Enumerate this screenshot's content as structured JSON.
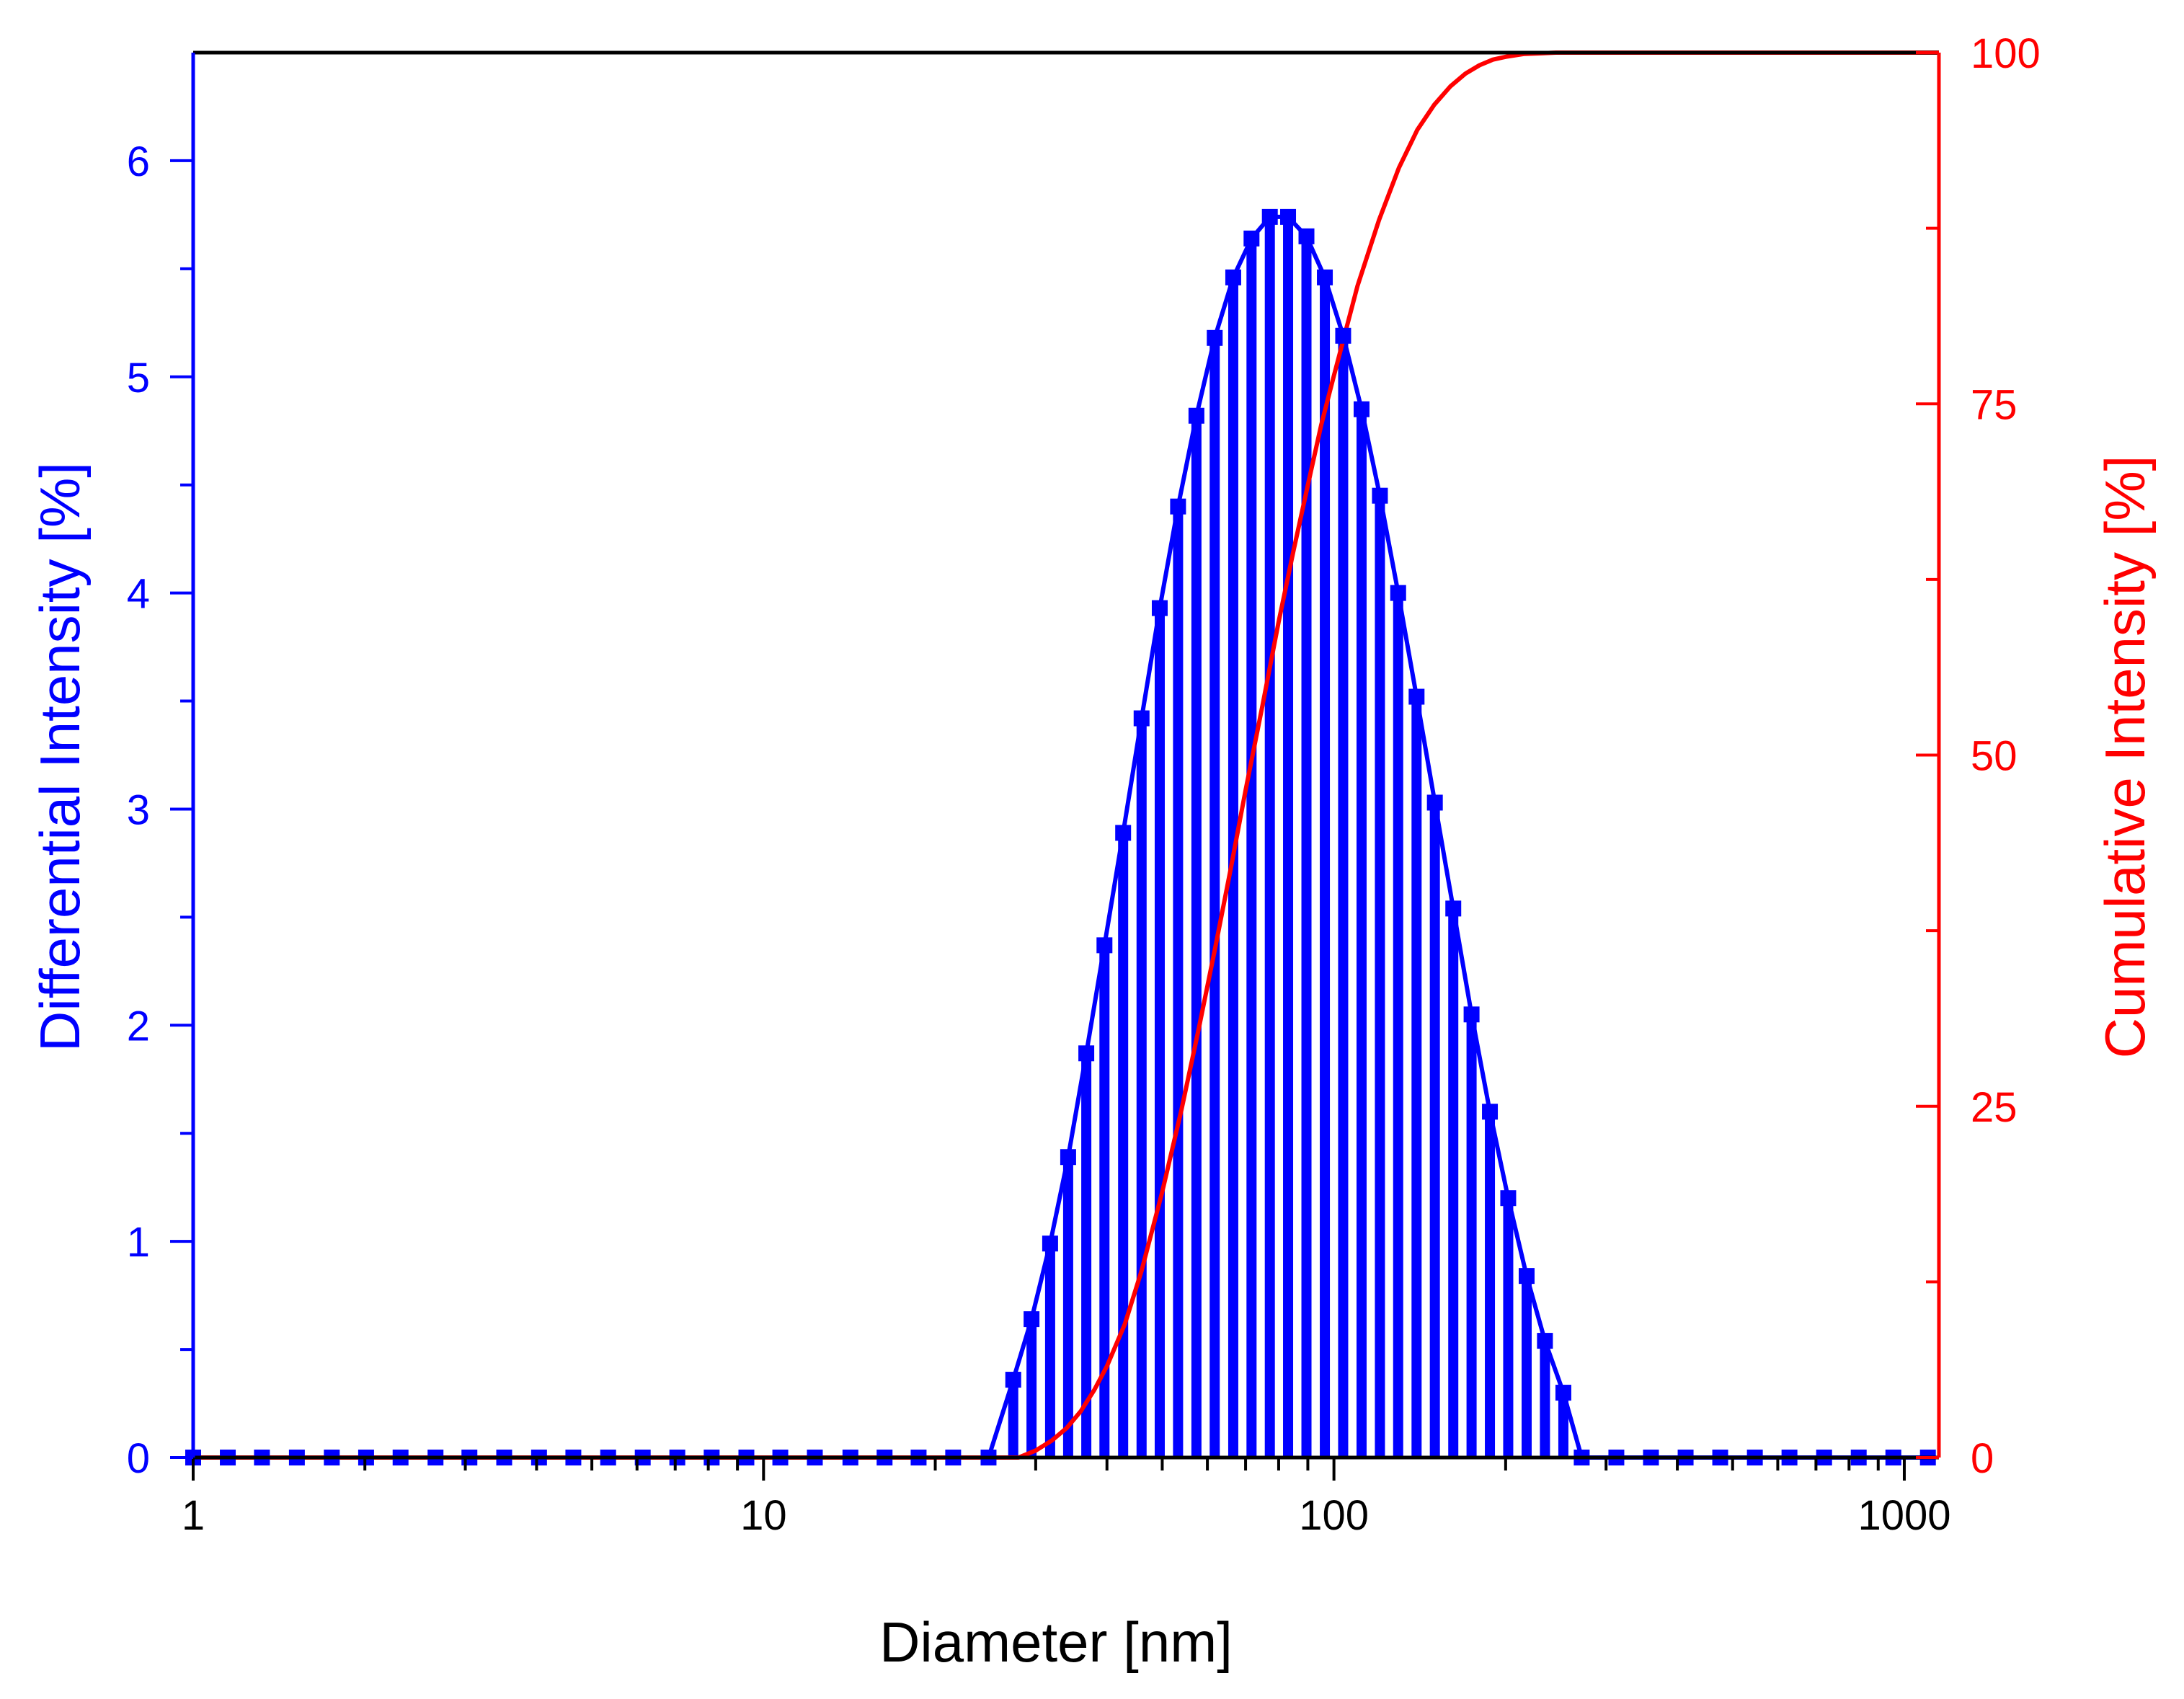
{
  "chart_data": {
    "type": "bar",
    "xlabel": "Diameter [nm]",
    "ylabel": "Differential Intensity [%]",
    "y2label": "Cumulative Intensity [%]",
    "x_scale": "log",
    "xlim": [
      1,
      1150
    ],
    "ylim": [
      0,
      6.5
    ],
    "y2lim": [
      0,
      100
    ],
    "x_ticks": [
      1,
      10,
      100,
      1000
    ],
    "x_tick_labels": [
      "1",
      "10",
      "100",
      "1000"
    ],
    "y_ticks": [
      0,
      1,
      2,
      3,
      4,
      5,
      6
    ],
    "y_tick_labels": [
      "0",
      "1",
      "2",
      "3",
      "4",
      "5",
      "6"
    ],
    "y2_ticks": [
      0,
      25,
      50,
      75,
      100
    ],
    "y2_tick_labels": [
      "0",
      "25",
      "50",
      "75",
      "100"
    ],
    "grid": false,
    "colors": {
      "differential": "#0000ff",
      "cumulative": "#ff0000",
      "frame": "#000000"
    },
    "series": [
      {
        "type": "bar+line",
        "axis": "left",
        "x": [
          1,
          1.15,
          1.32,
          1.52,
          1.75,
          2.01,
          2.31,
          2.66,
          3.05,
          3.51,
          4.04,
          4.64,
          5.34,
          6.14,
          7.06,
          8.11,
          9.33,
          10.7,
          12.3,
          14.2,
          16.3,
          18.7,
          21.5,
          24.8,
          27.4,
          29.5,
          31.8,
          34.2,
          36.8,
          39.6,
          42.7,
          46.0,
          49.5,
          53.3,
          57.4,
          61.8,
          66.6,
          71.7,
          77.2,
          83.1,
          89.5,
          96.4,
          103.8,
          111.8,
          120.4,
          129.6,
          139.6,
          150.3,
          161.9,
          174.3,
          187.7,
          202.1,
          217.7,
          234.4,
          252.5,
          271.9,
          312.7,
          359.6,
          413.6,
          475.6,
          547.0,
          629.0,
          723.4,
          831.9,
          956.7,
          1100
        ],
        "values": [
          0,
          0,
          0,
          0,
          0,
          0,
          0,
          0,
          0,
          0,
          0,
          0,
          0,
          0,
          0,
          0,
          0,
          0,
          0,
          0,
          0,
          0,
          0,
          0,
          0.36,
          0.64,
          0.99,
          1.39,
          1.87,
          2.37,
          2.89,
          3.42,
          3.93,
          4.4,
          4.82,
          5.18,
          5.46,
          5.64,
          5.74,
          5.74,
          5.65,
          5.46,
          5.19,
          4.85,
          4.45,
          4.0,
          3.52,
          3.03,
          2.54,
          2.05,
          1.6,
          1.2,
          0.84,
          0.54,
          0.3,
          0,
          0,
          0,
          0,
          0,
          0,
          0,
          0,
          0,
          0,
          0
        ]
      },
      {
        "type": "line",
        "axis": "right",
        "x": [
          1,
          10,
          20,
          28,
          30,
          32,
          34,
          36,
          38,
          40,
          43,
          46,
          50,
          54,
          58,
          62,
          66,
          70,
          75,
          80,
          85,
          90,
          95,
          100,
          110,
          120,
          130,
          140,
          150,
          160,
          170,
          180,
          190,
          200,
          215,
          230,
          245,
          260,
          300,
          500,
          1000,
          1150
        ],
        "values": [
          0,
          0,
          0,
          0,
          0.5,
          1.2,
          2.1,
          3.3,
          4.8,
          6.5,
          9.5,
          13.3,
          18.9,
          24.7,
          30.6,
          36.4,
          42.0,
          47.5,
          53.6,
          59.5,
          64.6,
          69.2,
          73.5,
          77.0,
          83.4,
          88.1,
          91.8,
          94.5,
          96.3,
          97.6,
          98.5,
          99.1,
          99.5,
          99.7,
          99.9,
          99.95,
          100,
          100,
          100,
          100,
          100,
          100
        ]
      }
    ]
  }
}
